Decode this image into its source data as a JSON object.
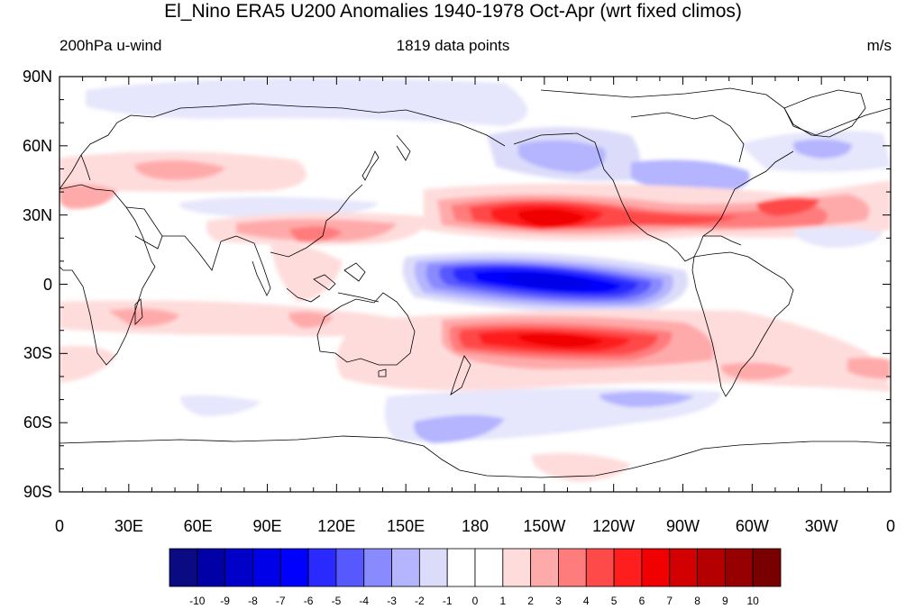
{
  "title": "El_Nino ERA5 U200 Anomalies 1940-1978 Oct-Apr (wrt fixed climos)",
  "left_label": "200hPa u-wind",
  "center_label": "1819 data points",
  "right_label": "m/s",
  "y_ticks": [
    "90N",
    "60N",
    "30N",
    "0",
    "30S",
    "60S",
    "90S"
  ],
  "x_ticks": [
    "0",
    "30E",
    "60E",
    "90E",
    "120E",
    "150E",
    "180",
    "150W",
    "120W",
    "90W",
    "60W",
    "30W",
    "0"
  ],
  "colorbar": {
    "labels": [
      "-10",
      "-9",
      "-8",
      "-7",
      "-6",
      "-5",
      "-4",
      "-3",
      "-2",
      "-1",
      "0",
      "1",
      "2",
      "3",
      "4",
      "5",
      "6",
      "7",
      "8",
      "9",
      "10"
    ],
    "colors": [
      "#0a0a82",
      "#0000a6",
      "#0000c8",
      "#0000e8",
      "#0000ff",
      "#2a2aff",
      "#5858ff",
      "#8a8aff",
      "#b4b4ff",
      "#dcdcfa",
      "#ffffff",
      "#ffffff",
      "#ffdcdc",
      "#ffaaaa",
      "#ff7c7c",
      "#ff4a4a",
      "#ff1e1e",
      "#f00000",
      "#d20000",
      "#b40000",
      "#960000",
      "#780000"
    ]
  }
}
